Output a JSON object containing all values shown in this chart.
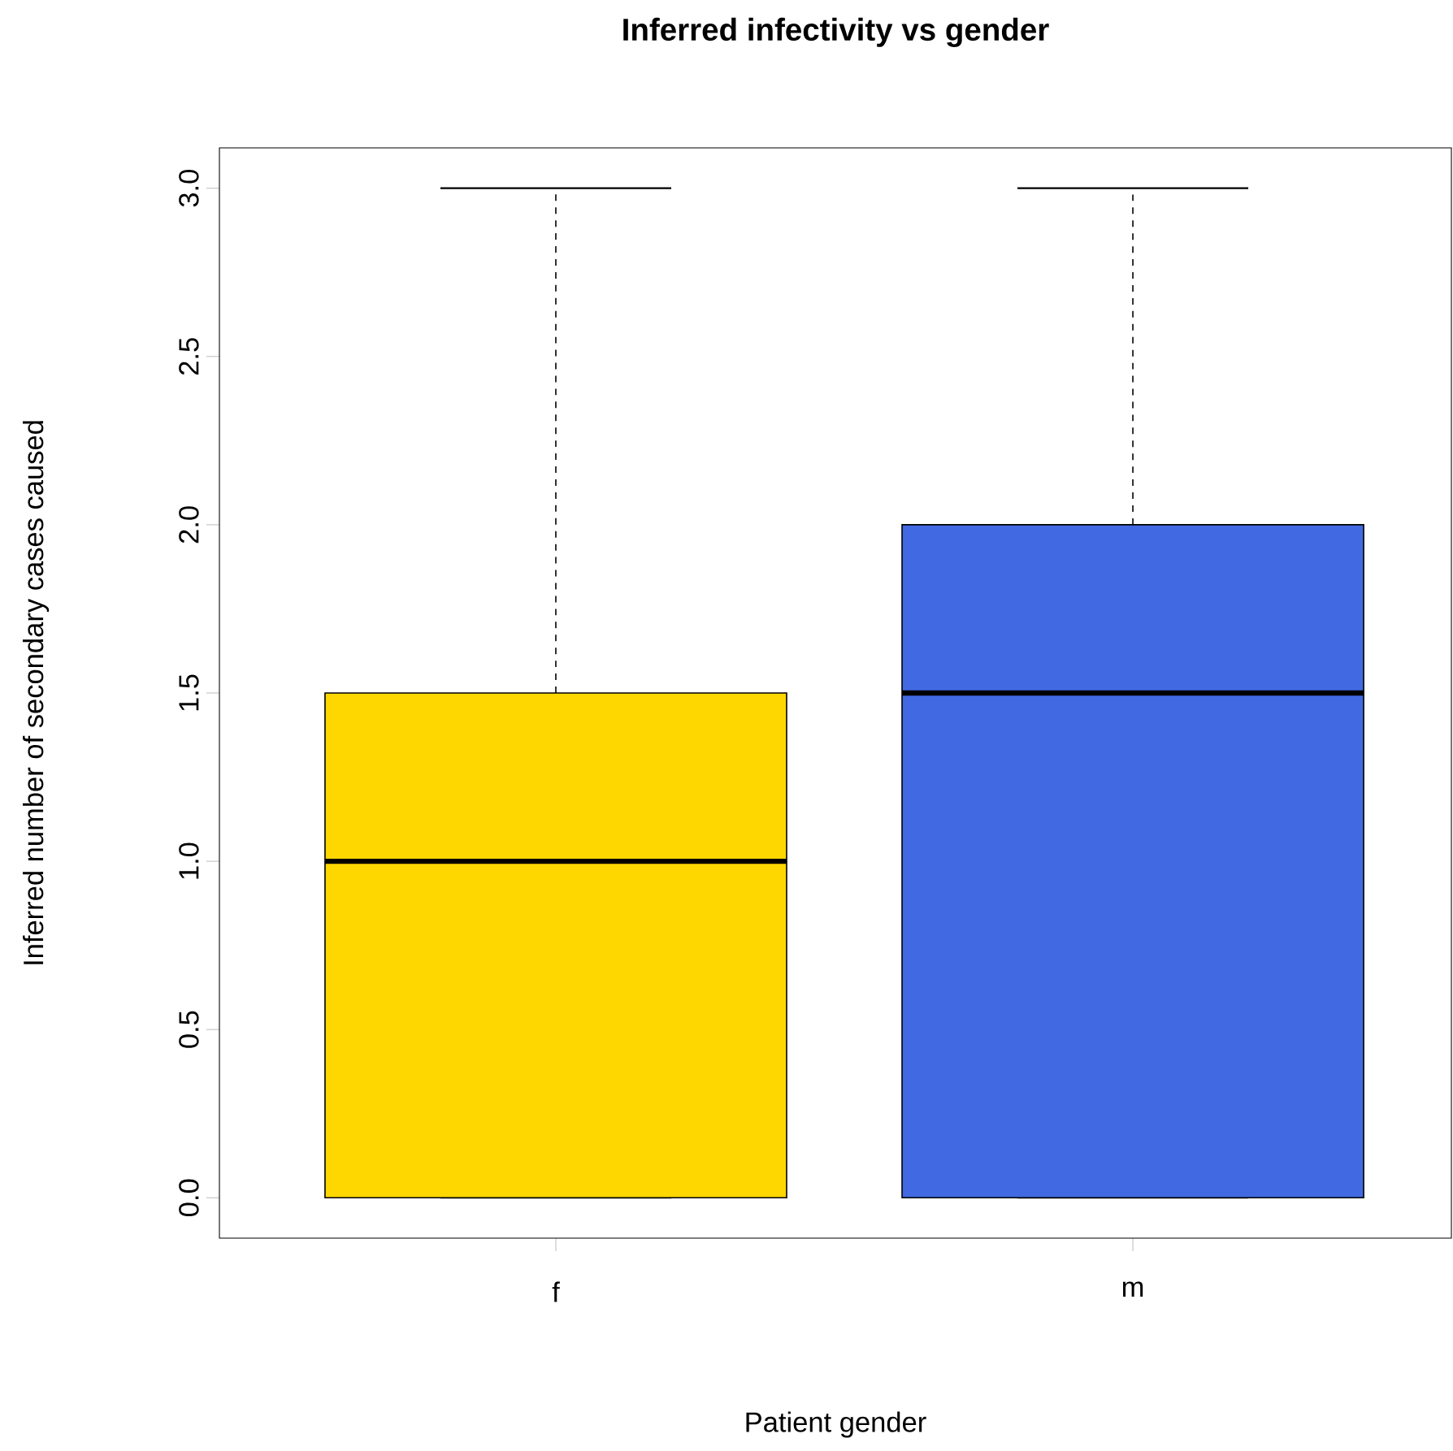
{
  "chart_data": {
    "type": "box",
    "title": "Inferred infectivity vs gender",
    "xlabel": "Patient gender",
    "ylabel": "Inferred number of secondary cases caused",
    "categories": [
      "f",
      "m"
    ],
    "colors": [
      "#ffd700",
      "#4169e1"
    ],
    "boxes": [
      {
        "low": 0,
        "q1": 0,
        "median": 1,
        "q3": 1.5,
        "high": 3
      },
      {
        "low": 0,
        "q1": 0,
        "median": 1.5,
        "q3": 2,
        "high": 3
      }
    ],
    "ylim": [
      -0.12,
      3.12
    ],
    "yticks": [
      {
        "value": 0,
        "label": "0.0"
      },
      {
        "value": 0.5,
        "label": "0.5"
      },
      {
        "value": 1,
        "label": "1.0"
      },
      {
        "value": 1.5,
        "label": "1.5"
      },
      {
        "value": 2,
        "label": "2.0"
      },
      {
        "value": 2.5,
        "label": "2.5"
      },
      {
        "value": 3,
        "label": "3.0"
      }
    ]
  }
}
